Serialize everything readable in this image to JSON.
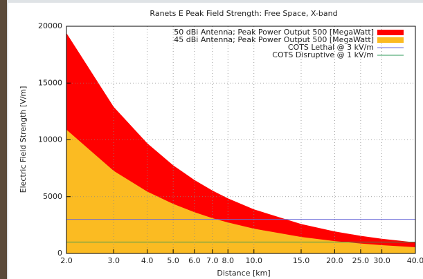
{
  "chart_data": {
    "type": "area",
    "title": "Ranets E Peak Field Strength: Free Space, X-band",
    "x_label": "Distance [km]",
    "y_label": "Electric Field Strength [V/m]",
    "x": [
      2,
      3,
      4,
      5,
      6,
      7,
      8,
      10,
      15,
      20,
      25,
      30,
      40
    ],
    "series": [
      {
        "name": "50 dBi Antenna; Peak Power Output 500 [MegaWatt]",
        "color": "#ff0000",
        "kind": "area",
        "values": [
          19400,
          12900,
          9700,
          7760,
          6470,
          5540,
          4850,
          3880,
          2590,
          1940,
          1550,
          1290,
          970
        ]
      },
      {
        "name": "45 dBi Antenna; Peak Power Output 500 [MegaWatt]",
        "color": "#fbbb22",
        "kind": "area",
        "values": [
          10900,
          7270,
          5450,
          4360,
          3630,
          3110,
          2730,
          2180,
          1450,
          1090,
          872,
          727,
          545
        ]
      },
      {
        "name": "COTS Lethal @ 3 kV/m",
        "color": "#6a6ad8",
        "kind": "line",
        "values": [
          3000,
          3000,
          3000,
          3000,
          3000,
          3000,
          3000,
          3000,
          3000,
          3000,
          3000,
          3000,
          3000
        ]
      },
      {
        "name": "COTS Disruptive @ 1 kV/m",
        "color": "#2e9a5a",
        "kind": "line",
        "values": [
          1000,
          1000,
          1000,
          1000,
          1000,
          1000,
          1000,
          1000,
          1000,
          1000,
          1000,
          1000,
          1000
        ]
      }
    ],
    "xscale": "log",
    "xlim": [
      2,
      40
    ],
    "xticks": [
      {
        "value": 2,
        "label": "2.0"
      },
      {
        "value": 3,
        "label": "3.0"
      },
      {
        "value": 4,
        "label": "4.0"
      },
      {
        "value": 5,
        "label": "5.0"
      },
      {
        "value": 6,
        "label": "6.0"
      },
      {
        "value": 7,
        "label": "7.0"
      },
      {
        "value": 8,
        "label": "8.0"
      },
      {
        "value": 10,
        "label": "10.0"
      },
      {
        "value": 15,
        "label": "15.0"
      },
      {
        "value": 20,
        "label": "20.0"
      },
      {
        "value": 25,
        "label": "25.0"
      },
      {
        "value": 30,
        "label": "30.0"
      },
      {
        "value": 40,
        "label": "40.0"
      }
    ],
    "ylim": [
      0,
      20000
    ],
    "yticks": [
      0,
      5000,
      10000,
      15000,
      20000
    ],
    "grid": true,
    "legend": "top-right"
  }
}
